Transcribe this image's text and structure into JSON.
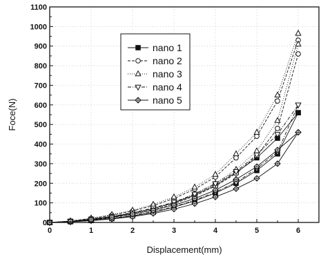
{
  "chart_data": {
    "type": "line",
    "title": "",
    "xlabel": "Displacement(mm)",
    "ylabel": "Foce(N)",
    "xlim": [
      0,
      6.5
    ],
    "ylim": [
      0,
      1100
    ],
    "xticks": [
      0,
      1,
      2,
      3,
      4,
      5,
      6
    ],
    "yticks": [
      0,
      100,
      200,
      300,
      400,
      500,
      600,
      700,
      800,
      900,
      1000,
      1100
    ],
    "grid": true,
    "legend": "top-center",
    "x": [
      0,
      0.5,
      1,
      1.5,
      2,
      2.5,
      3,
      3.5,
      4,
      4.5,
      5,
      5.5,
      6
    ],
    "series": [
      {
        "name": "nano 1",
        "marker": "filled-square",
        "dash": "solid",
        "loading": [
          0,
          6,
          16,
          30,
          48,
          70,
          100,
          140,
          190,
          255,
          330,
          430,
          560
        ],
        "unloading": [
          0,
          4,
          10,
          20,
          34,
          52,
          78,
          110,
          150,
          200,
          265,
          350,
          560
        ]
      },
      {
        "name": "nano 2",
        "marker": "open-circle",
        "dash": "dashed",
        "loading": [
          0,
          7,
          20,
          37,
          58,
          86,
          122,
          170,
          232,
          330,
          440,
          620,
          930
        ],
        "unloading": [
          0,
          5,
          12,
          25,
          42,
          64,
          95,
          135,
          185,
          250,
          340,
          480,
          860
        ]
      },
      {
        "name": "nano 3",
        "marker": "open-triangle-up",
        "dash": "dotted",
        "loading": [
          0,
          8,
          22,
          40,
          62,
          92,
          130,
          180,
          245,
          350,
          460,
          650,
          965
        ],
        "unloading": [
          0,
          6,
          14,
          28,
          46,
          70,
          102,
          145,
          200,
          270,
          365,
          520,
          910
        ]
      },
      {
        "name": "nano 4",
        "marker": "open-triangle-down",
        "dash": "dashdot",
        "loading": [
          0,
          6,
          17,
          31,
          50,
          74,
          104,
          145,
          198,
          260,
          345,
          450,
          600
        ],
        "unloading": [
          0,
          4,
          10,
          21,
          36,
          55,
          80,
          113,
          155,
          205,
          275,
          360,
          600
        ]
      },
      {
        "name": "nano 5",
        "marker": "open-diamond",
        "dash": "solid",
        "loading": [
          0,
          5,
          14,
          27,
          43,
          62,
          88,
          122,
          165,
          220,
          285,
          370,
          460
        ],
        "unloading": [
          0,
          3,
          9,
          18,
          30,
          46,
          68,
          96,
          130,
          172,
          225,
          300,
          460
        ]
      }
    ]
  }
}
